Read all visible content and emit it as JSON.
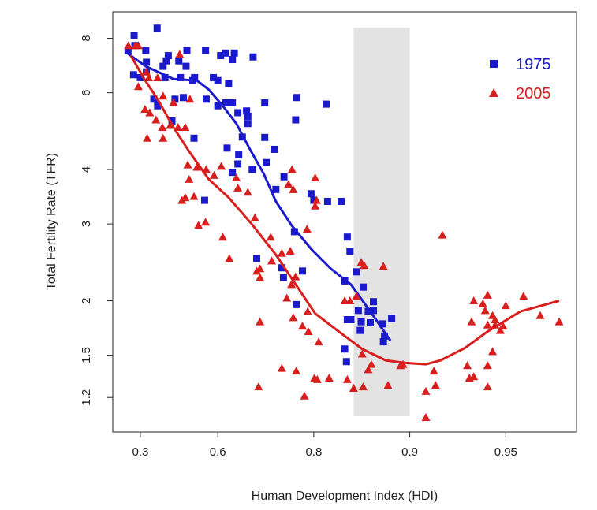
{
  "chart_data": {
    "type": "scatter",
    "x_label": "Human Development Index (HDI)",
    "y_label": "Total Fertility Rate (TFR)",
    "xscale": "complement-log",
    "yscale": "log",
    "xlim": [
      0.146,
      0.97
    ],
    "ylim": [
      1.0,
      9.2
    ],
    "xticks": [
      0.3,
      0.6,
      0.8,
      0.9,
      0.95
    ],
    "yticks": [
      1.2,
      1.5,
      2,
      3,
      4,
      6,
      8
    ],
    "shaded_region": {
      "x": [
        0.85,
        0.9
      ],
      "color": "#e3e3e3"
    },
    "legend": "top-right",
    "series": [
      {
        "name": "1975",
        "color": "#1a1acc",
        "marker": "square",
        "x": [
          0.268,
          0.272,
          0.235,
          0.38,
          0.327,
          0.33,
          0.265,
          0.3,
          0.33,
          0.406,
          0.428,
          0.42,
          0.47,
          0.476,
          0.5,
          0.497,
          0.414,
          0.365,
          0.382,
          0.455,
          0.487,
          0.521,
          0.527,
          0.563,
          0.608,
          0.622,
          0.64,
          0.645,
          0.69,
          0.587,
          0.63,
          0.6,
          0.565,
          0.6,
          0.64,
          0.622,
          0.654,
          0.675,
          0.678,
          0.678,
          0.665,
          0.715,
          0.774,
          0.772,
          0.817,
          0.443,
          0.525,
          0.626,
          0.656,
          0.654,
          0.64,
          0.688,
          0.734,
          0.715,
          0.718,
          0.752,
          0.737,
          0.56,
          0.796,
          0.8,
          0.819,
          0.836,
          0.77,
          0.843,
          0.846,
          0.698,
          0.748,
          0.751,
          0.783,
          0.853,
          0.84,
          0.86,
          0.773,
          0.87,
          0.87,
          0.855,
          0.843,
          0.847,
          0.857,
          0.858,
          0.867,
          0.878,
          0.886,
          0.88,
          0.879,
          0.84,
          0.842,
          0.865
        ],
        "values": [
          8.13,
          7.7,
          7.5,
          8.44,
          7.5,
          7.05,
          6.6,
          6.5,
          6.7,
          6.9,
          7.3,
          7.1,
          7.1,
          6.5,
          7.5,
          6.9,
          6.5,
          5.8,
          5.6,
          5.8,
          5.85,
          6.4,
          6.5,
          7.5,
          7.3,
          7.4,
          7.15,
          7.4,
          7.25,
          6.5,
          6.3,
          6.4,
          5.8,
          5.6,
          5.69,
          5.69,
          5.4,
          5.45,
          5.3,
          5.1,
          4.75,
          5.69,
          5.85,
          5.2,
          5.65,
          5.17,
          4.72,
          4.48,
          4.32,
          4.12,
          3.94,
          4.0,
          4.45,
          4.74,
          4.15,
          3.85,
          3.6,
          3.4,
          3.52,
          3.4,
          3.38,
          3.38,
          2.88,
          2.8,
          2.6,
          2.5,
          2.38,
          2.26,
          2.34,
          2.33,
          2.22,
          2.15,
          1.96,
          1.99,
          1.9,
          1.9,
          1.81,
          1.81,
          1.71,
          1.79,
          1.78,
          1.77,
          1.82,
          1.66,
          1.61,
          1.55,
          1.45,
          1.89
        ],
        "trend_x": [
          0.23,
          0.327,
          0.449,
          0.535,
          0.573,
          0.614,
          0.65,
          0.684,
          0.713,
          0.737,
          0.765,
          0.796,
          0.823,
          0.847,
          0.867,
          0.885
        ],
        "trend_values": [
          7.4,
          6.9,
          6.45,
          6.4,
          6.1,
          5.6,
          5.1,
          4.43,
          3.91,
          3.38,
          2.98,
          2.63,
          2.37,
          2.18,
          1.89,
          1.62
        ]
      },
      {
        "name": "2005",
        "color": "#d91e1e",
        "marker": "triangle",
        "x": [
          0.237,
          0.275,
          0.29,
          0.33,
          0.341,
          0.29,
          0.382,
          0.406,
          0.449,
          0.323,
          0.346,
          0.375,
          0.403,
          0.436,
          0.467,
          0.494,
          0.511,
          0.473,
          0.334,
          0.406,
          0.503,
          0.535,
          0.508,
          0.565,
          0.589,
          0.61,
          0.65,
          0.482,
          0.494,
          0.525,
          0.563,
          0.54,
          0.654,
          0.678,
          0.694,
          0.614,
          0.632,
          0.705,
          0.698,
          0.705,
          0.727,
          0.729,
          0.748,
          0.763,
          0.766,
          0.768,
          0.76,
          0.79,
          0.802,
          0.804,
          0.802,
          0.772,
          0.765,
          0.757,
          0.768,
          0.783,
          0.791,
          0.792,
          0.807,
          0.705,
          0.748,
          0.773,
          0.702,
          0.786,
          0.801,
          0.805,
          0.821,
          0.843,
          0.85,
          0.86,
          0.883,
          0.859,
          0.865,
          0.868,
          0.846,
          0.84,
          0.853,
          0.858,
          0.861,
          0.879,
          0.893,
          0.895,
          0.911,
          0.917,
          0.916,
          0.911,
          0.921,
          0.934,
          0.935,
          0.937,
          0.937,
          0.936,
          0.941,
          0.942,
          0.943,
          0.943,
          0.943,
          0.943,
          0.945,
          0.946,
          0.946,
          0.948,
          0.949,
          0.945,
          0.95,
          0.956,
          0.961,
          0.966
        ],
        "values": [
          7.7,
          7.7,
          7.7,
          6.7,
          6.5,
          6.2,
          6.5,
          5.9,
          5.7,
          5.5,
          5.4,
          5.2,
          5.0,
          5.05,
          5.0,
          5.0,
          5.8,
          7.35,
          4.72,
          4.72,
          4.1,
          4.05,
          3.8,
          4.0,
          3.88,
          4.07,
          3.83,
          3.4,
          3.45,
          3.47,
          3.03,
          2.98,
          3.63,
          3.55,
          3.1,
          2.8,
          2.5,
          2.37,
          2.34,
          2.26,
          2.8,
          2.47,
          2.57,
          2.6,
          4.0,
          3.6,
          3.7,
          2.92,
          3.83,
          3.4,
          3.3,
          2.27,
          2.18,
          2.03,
          1.83,
          1.75,
          1.89,
          1.7,
          1.61,
          1.79,
          1.4,
          1.38,
          1.27,
          1.21,
          1.33,
          1.32,
          1.33,
          1.32,
          1.26,
          1.27,
          1.28,
          1.51,
          1.39,
          1.43,
          2.0,
          2.0,
          2.05,
          2.45,
          2.41,
          2.4,
          1.42,
          1.43,
          1.24,
          1.28,
          1.38,
          1.08,
          2.83,
          1.42,
          1.33,
          1.34,
          2.0,
          1.79,
          1.97,
          1.9,
          2.06,
          1.76,
          1.27,
          1.42,
          1.85,
          1.81,
          1.76,
          1.71,
          1.75,
          1.53,
          1.95,
          2.05,
          1.85,
          1.79
        ],
        "trend_x": [
          0.25,
          0.32,
          0.382,
          0.449,
          0.508,
          0.573,
          0.63,
          0.688,
          0.737,
          0.772,
          0.802,
          0.833,
          0.859,
          0.881,
          0.897,
          0.911,
          0.92,
          0.933,
          0.943,
          0.955,
          0.966
        ],
        "trend_values": [
          7.3,
          6.45,
          5.8,
          5.0,
          4.4,
          3.8,
          3.45,
          2.99,
          2.55,
          2.18,
          1.87,
          1.7,
          1.55,
          1.46,
          1.44,
          1.43,
          1.46,
          1.56,
          1.7,
          1.89,
          2.0
        ]
      }
    ]
  }
}
